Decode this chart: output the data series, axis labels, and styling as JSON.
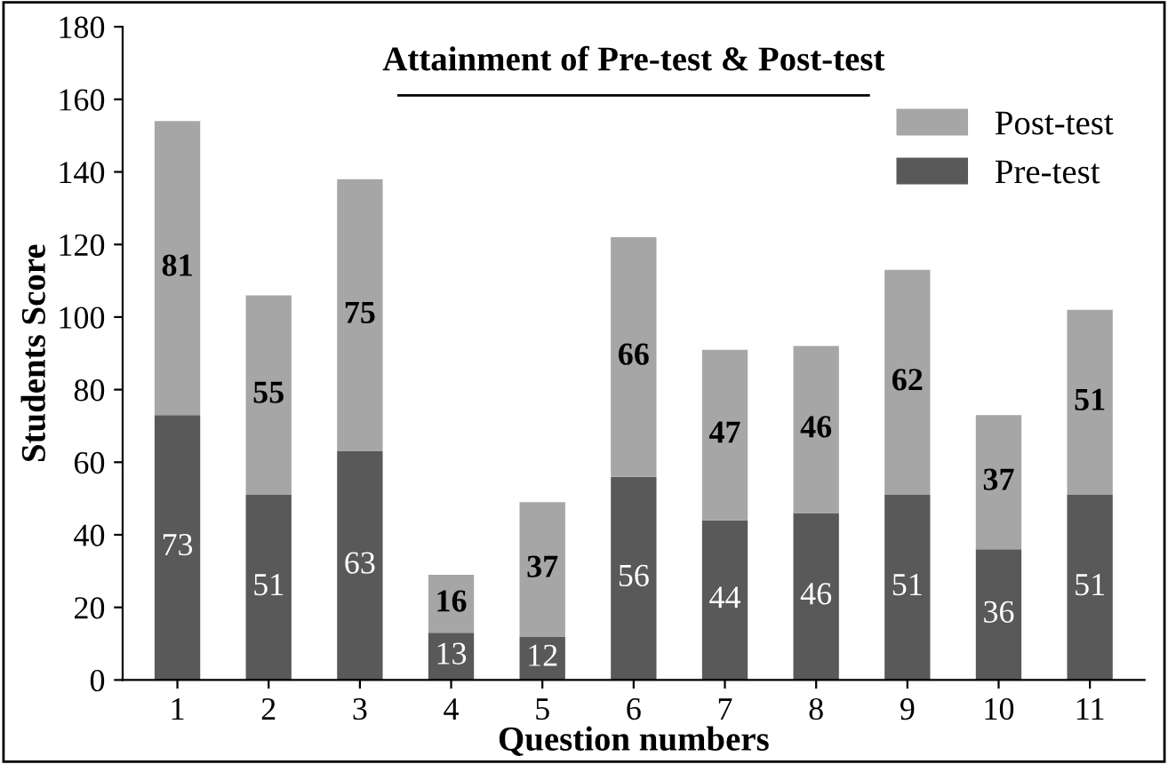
{
  "chart_data": {
    "type": "bar",
    "stacked": true,
    "title": "Attainment of Pre-test & Post-test",
    "xlabel": "Question numbers",
    "ylabel": "Students Score",
    "categories": [
      "1",
      "2",
      "3",
      "4",
      "5",
      "6",
      "7",
      "8",
      "9",
      "10",
      "11"
    ],
    "series": [
      {
        "name": "Pre-test",
        "color": "#595959",
        "values": [
          73,
          51,
          63,
          13,
          12,
          56,
          44,
          46,
          51,
          36,
          51
        ]
      },
      {
        "name": "Post-test",
        "color": "#a6a6a6",
        "values": [
          81,
          55,
          75,
          16,
          37,
          66,
          47,
          46,
          62,
          37,
          51
        ]
      }
    ],
    "ylim": [
      0,
      180
    ],
    "yticks": [
      0,
      20,
      40,
      60,
      80,
      100,
      120,
      140,
      160,
      180
    ],
    "grid": false,
    "legend": "top right",
    "data_labels": true
  }
}
